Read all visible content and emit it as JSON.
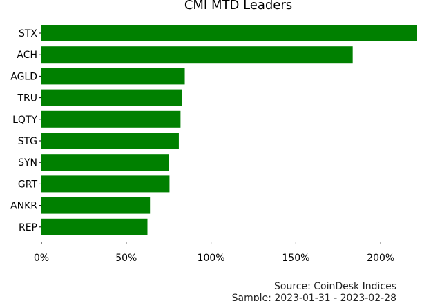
{
  "chart_data": {
    "type": "bar",
    "orientation": "horizontal",
    "title": "CMI MTD Leaders",
    "categories": [
      "STX",
      "ACH",
      "AGLD",
      "TRU",
      "LQTY",
      "STG",
      "SYN",
      "GRT",
      "ANKR",
      "REP"
    ],
    "values": [
      221.5,
      183.5,
      84.5,
      83,
      82,
      81,
      75,
      75.5,
      64,
      62.5
    ],
    "x_ticks": [
      "0%",
      "50%",
      "100%",
      "150%",
      "200%"
    ],
    "x_tick_values": [
      0,
      50,
      100,
      150,
      200
    ],
    "xlim": [
      0,
      221.5
    ],
    "xlabel": "",
    "ylabel": "",
    "grid": false,
    "bar_color": "#008000"
  },
  "footer": {
    "source": "Source: CoinDesk Indices",
    "sample": "Sample: 2023-01-31 - 2023-02-28"
  }
}
